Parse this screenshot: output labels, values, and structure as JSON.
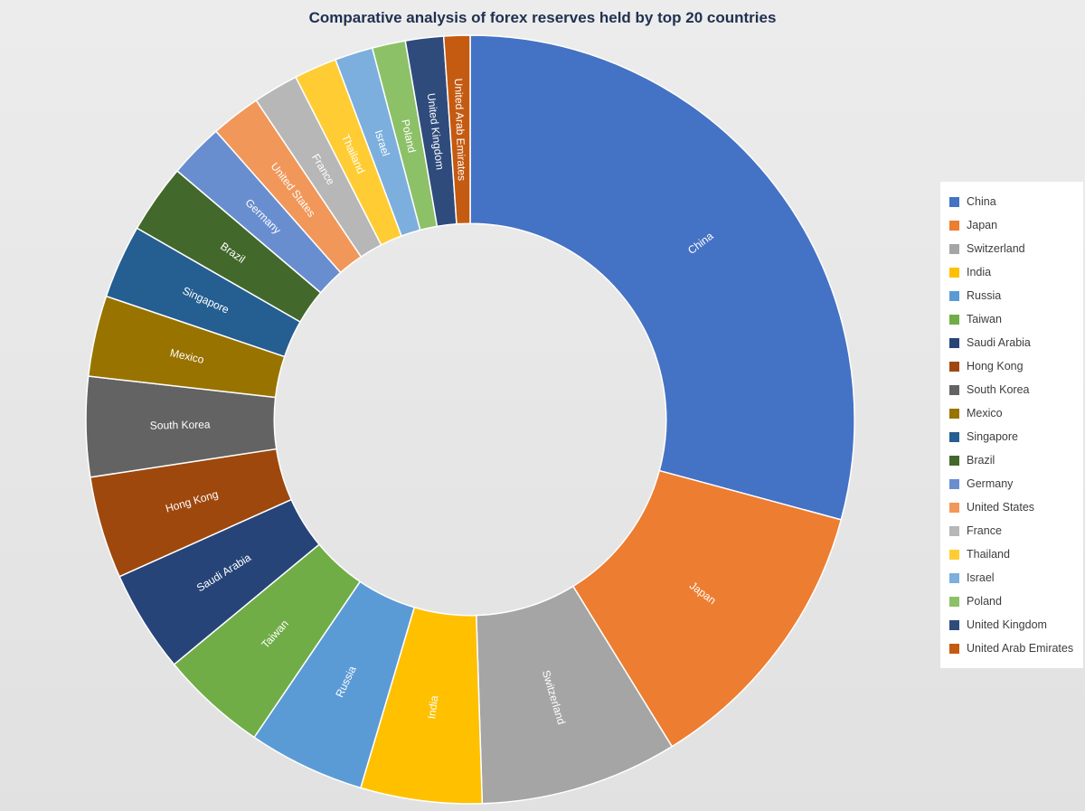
{
  "page": {
    "background_top": "#ececec",
    "background_bottom": "#e1e1e1"
  },
  "chart_data": {
    "type": "pie",
    "subtype": "donut",
    "title": "Comparative analysis of forex reserves held by top 20 countries",
    "title_color": "#1f3050",
    "legend_position": "right",
    "direction": "clockwise",
    "start_angle_deg": 0,
    "donut_hole_ratio": 0.51,
    "grid": "off",
    "labels_on_slices": true,
    "slice_label_color": "#ffffff",
    "slice_border_color": "#ffffff",
    "values_unit": "percent share of total (estimated from slice angles)",
    "categories": [
      "China",
      "Japan",
      "Switzerland",
      "India",
      "Russia",
      "Taiwan",
      "Saudi Arabia",
      "Hong Kong",
      "South Korea",
      "Mexico",
      "Singapore",
      "Brazil",
      "Germany",
      "United States",
      "France",
      "Thailand",
      "Israel",
      "Poland",
      "United Kingdom",
      "United Arab Emirates"
    ],
    "values": [
      29.2,
      12.0,
      8.3,
      5.1,
      4.9,
      4.5,
      4.3,
      4.3,
      4.2,
      3.4,
      3.1,
      2.9,
      2.3,
      2.1,
      1.9,
      1.8,
      1.6,
      1.4,
      1.6,
      1.1
    ],
    "colors": [
      "#4472C4",
      "#ED7D31",
      "#A5A5A5",
      "#FFC000",
      "#5B9BD5",
      "#70AD47",
      "#264478",
      "#9E480E",
      "#636363",
      "#997300",
      "#255E91",
      "#43682B",
      "#698ED0",
      "#F1975A",
      "#B7B7B7",
      "#FFCD33",
      "#7CAFDD",
      "#8CC168",
      "#2F4B7C",
      "#C55A11"
    ]
  },
  "legend": {
    "background": "#ffffff",
    "text_color": "#3d3d3d"
  }
}
